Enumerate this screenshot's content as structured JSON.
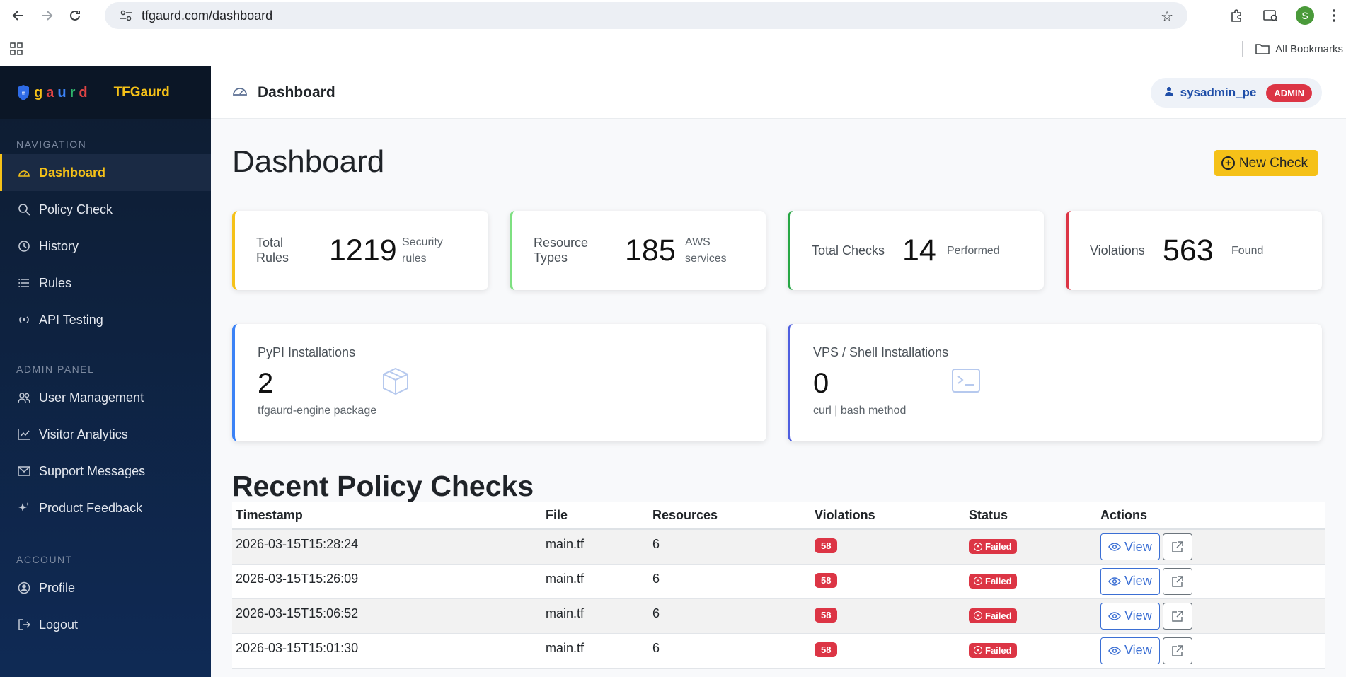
{
  "browser": {
    "url": "tfgaurd.com/dashboard",
    "profile_initial": "S",
    "bookmarks_label": "All Bookmarks"
  },
  "brand": {
    "logo_word": "gaurd",
    "logo_letters": [
      "g",
      "a",
      "u",
      "r",
      "d"
    ],
    "logo_colors": [
      "#f5c118",
      "#e04444",
      "#3b82f6",
      "#2fb36b",
      "#e04444"
    ],
    "name": "TFGaurd"
  },
  "sidebar": {
    "nav_label": "NAVIGATION",
    "nav_items": [
      {
        "label": "Dashboard",
        "icon": "gauge-icon",
        "active": true
      },
      {
        "label": "Policy Check",
        "icon": "search-icon"
      },
      {
        "label": "History",
        "icon": "clock-icon"
      },
      {
        "label": "Rules",
        "icon": "list-icon"
      },
      {
        "label": "API Testing",
        "icon": "broadcast-icon"
      }
    ],
    "admin_label": "ADMIN PANEL",
    "admin_items": [
      {
        "label": "User Management",
        "icon": "users-icon"
      },
      {
        "label": "Visitor Analytics",
        "icon": "chart-line-icon"
      },
      {
        "label": "Support Messages",
        "icon": "envelope-icon"
      },
      {
        "label": "Product Feedback",
        "icon": "sparkle-icon"
      }
    ],
    "account_label": "ACCOUNT",
    "account_items": [
      {
        "label": "Profile",
        "icon": "user-circle-icon"
      },
      {
        "label": "Logout",
        "icon": "logout-icon"
      }
    ]
  },
  "topbar": {
    "title": "Dashboard",
    "username": "sysadmin_pe",
    "role_badge": "ADMIN"
  },
  "page": {
    "title": "Dashboard",
    "new_check_label": "New Check"
  },
  "stats": [
    {
      "label_line1": "Total",
      "label_line2": "Rules",
      "value": "1219",
      "sub_line1": "Security",
      "sub_line2": "rules",
      "color": "#f5c118"
    },
    {
      "label_line1": "Resource",
      "label_line2": "Types",
      "value": "185",
      "sub_line1": "AWS",
      "sub_line2": "services",
      "color": "#7ee081"
    },
    {
      "label_line1": "Total Checks",
      "label_line2": "",
      "value": "14",
      "sub_line1": "Performed",
      "sub_line2": "",
      "color": "#28a745"
    },
    {
      "label_line1": "Violations",
      "label_line2": "",
      "value": "563",
      "sub_line1": "Found",
      "sub_line2": "",
      "color": "#dc3545"
    }
  ],
  "installs": [
    {
      "label": "PyPI Installations",
      "value": "2",
      "sub": "tfgaurd-engine package",
      "icon": "package-icon",
      "color": "#3b82f6"
    },
    {
      "label": "VPS / Shell Installations",
      "value": "0",
      "sub": "curl | bash method",
      "icon": "terminal-icon",
      "color": "#4f5fe0"
    }
  ],
  "recent": {
    "title": "Recent Policy Checks",
    "columns": [
      "Timestamp",
      "File",
      "Resources",
      "Violations",
      "Status",
      "Actions"
    ],
    "view_label": "View",
    "rows": [
      {
        "timestamp": "2026-03-15T15:28:24",
        "file": "main.tf",
        "resources": "6",
        "violations": "58",
        "status": "Failed"
      },
      {
        "timestamp": "2026-03-15T15:26:09",
        "file": "main.tf",
        "resources": "6",
        "violations": "58",
        "status": "Failed"
      },
      {
        "timestamp": "2026-03-15T15:06:52",
        "file": "main.tf",
        "resources": "6",
        "violations": "58",
        "status": "Failed"
      },
      {
        "timestamp": "2026-03-15T15:01:30",
        "file": "main.tf",
        "resources": "6",
        "violations": "58",
        "status": "Failed"
      }
    ]
  }
}
